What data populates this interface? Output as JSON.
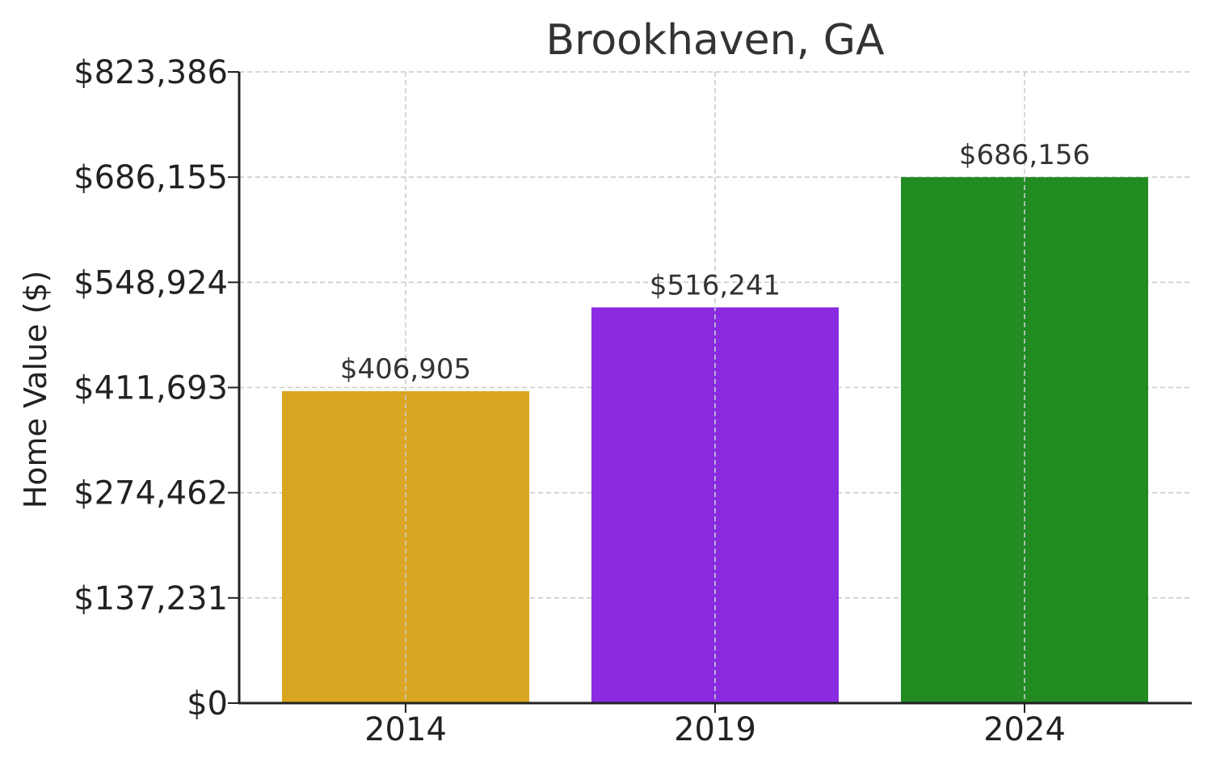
{
  "chart_data": {
    "type": "bar",
    "title": "Brookhaven, GA",
    "xlabel": "",
    "ylabel": "Home Value ($)",
    "categories": [
      "2014",
      "2019",
      "2024"
    ],
    "values": [
      406905,
      516241,
      686156
    ],
    "value_labels": [
      "$406,905",
      "$516,241",
      "$686,156"
    ],
    "bar_colors": [
      "#DAA520",
      "#8A2BE2",
      "#228B22"
    ],
    "ylim": [
      0,
      823386
    ],
    "yticks": [
      0,
      137231,
      274462,
      411693,
      548924,
      686155,
      823386
    ],
    "ytick_labels": [
      "$0",
      "$137,231",
      "$274,462",
      "$411,693",
      "$548,924",
      "$686,155",
      "$823,386"
    ],
    "grid": true,
    "legend": "none"
  }
}
